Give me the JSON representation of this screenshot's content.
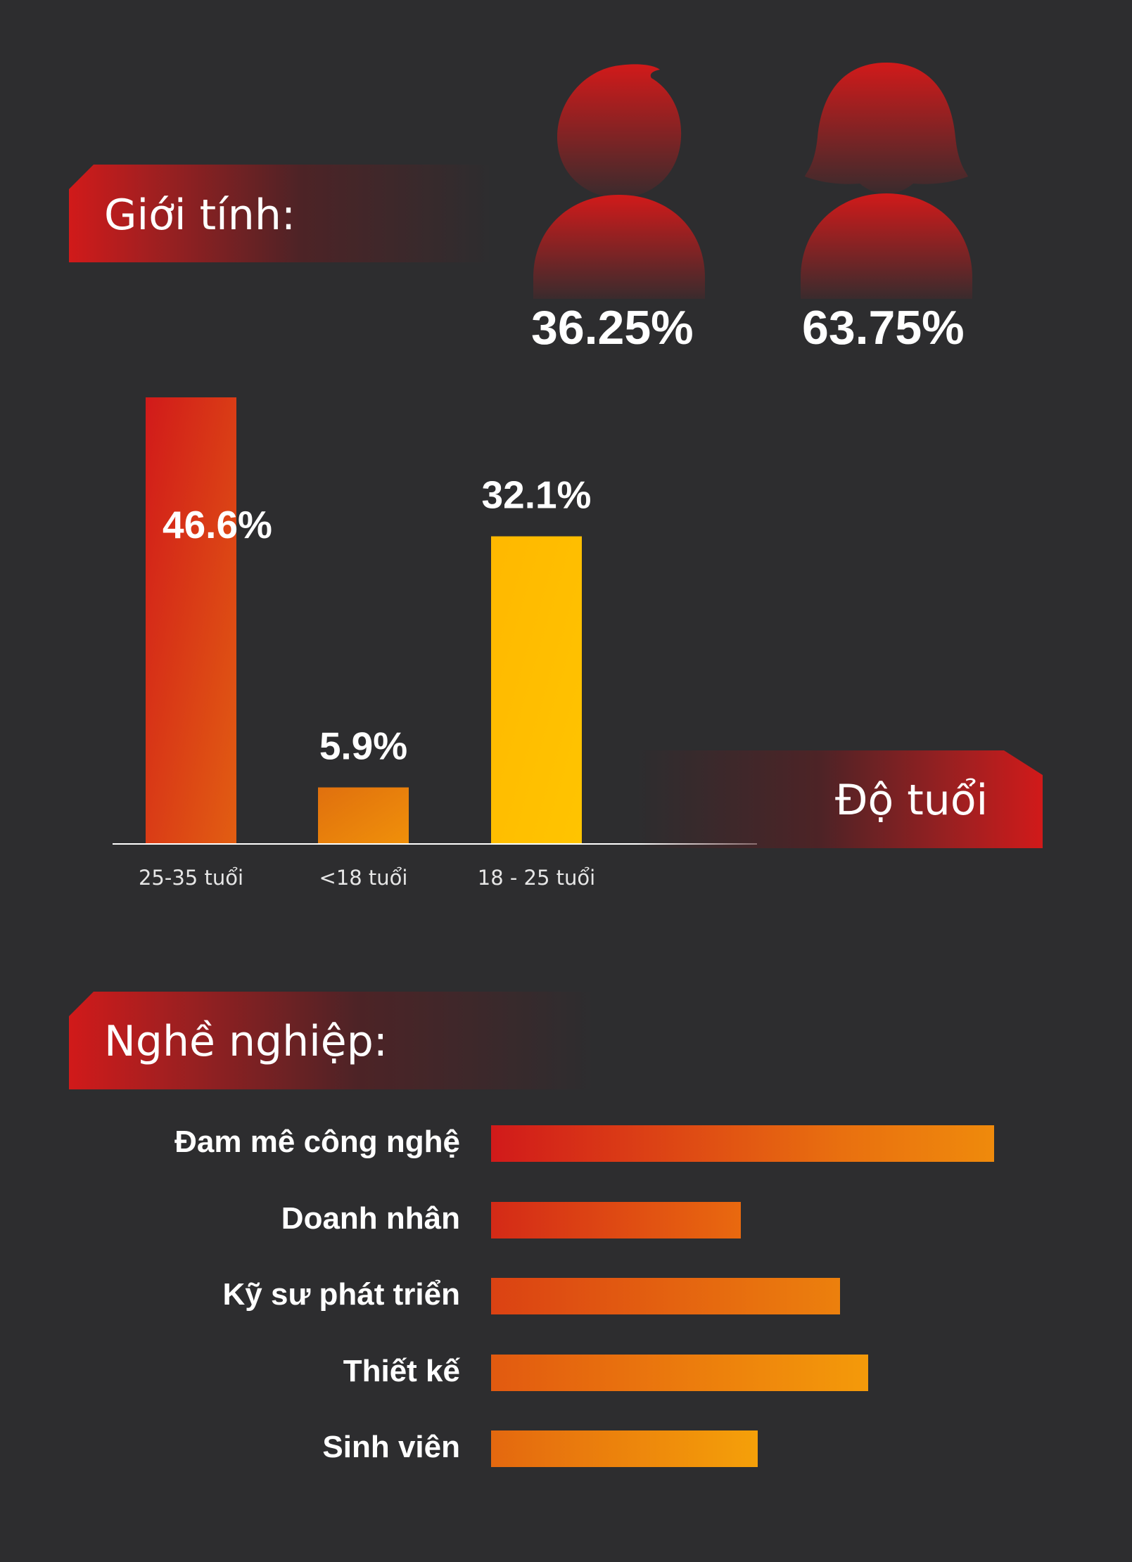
{
  "gender": {
    "title": "Giới tính:",
    "male": {
      "icon": "male-person-icon",
      "percent": "36.25%",
      "value": 36.25
    },
    "female": {
      "icon": "female-person-icon",
      "percent": "63.75%",
      "value": 63.75
    }
  },
  "age": {
    "title": "Độ tuổi"
  },
  "occupation": {
    "title": "Nghề nghiệp:"
  },
  "colors": {
    "red": "#d11a1a",
    "orange": "#f08a0b",
    "yellow": "#ffbe00",
    "background": "#2d2d2f"
  },
  "chart_data": [
    {
      "type": "bar",
      "categories": [
        "25-35 tuổi",
        "<18 tuổi",
        "18 - 25 tuổi"
      ],
      "values": [
        46.6,
        5.9,
        32.1
      ],
      "labels": [
        "46.6%",
        "5.9%",
        "32.1%"
      ],
      "ylim": [
        0,
        46.6
      ],
      "grid": false
    },
    {
      "type": "bar",
      "orientation": "horizontal",
      "categories": [
        "Đam mê công nghệ",
        "Doanh nhân",
        "Kỹ sư phát triển",
        "Thiết kế",
        "Sinh viên"
      ],
      "values": [
        100,
        49.6,
        69.4,
        75,
        53
      ]
    }
  ]
}
